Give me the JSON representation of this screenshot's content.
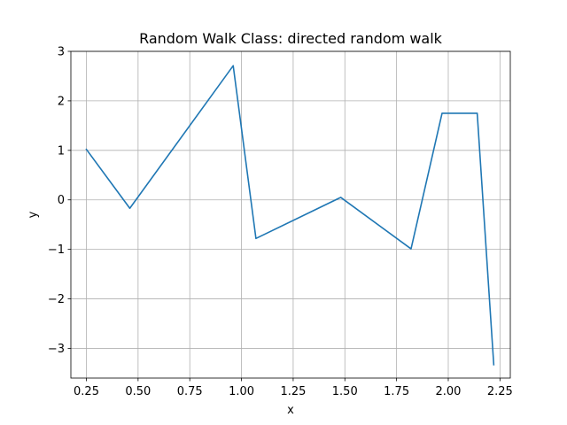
{
  "chart_data": {
    "type": "line",
    "title": "Random Walk Class:  directed random walk",
    "xlabel": "x",
    "ylabel": "y",
    "xlim": [
      0.175,
      2.3
    ],
    "ylim": [
      -3.6,
      3.0
    ],
    "xticks": [
      0.25,
      0.5,
      0.75,
      1.0,
      1.25,
      1.5,
      1.75,
      2.0,
      2.25
    ],
    "xtick_labels": [
      "0.25",
      "0.50",
      "0.75",
      "1.00",
      "1.25",
      "1.50",
      "1.75",
      "2.00",
      "2.25"
    ],
    "yticks": [
      -3,
      -2,
      -1,
      0,
      1,
      2,
      3
    ],
    "ytick_labels": [
      "−3",
      "−2",
      "−1",
      "0",
      "1",
      "2",
      "3"
    ],
    "grid": true,
    "series": [
      {
        "color": "#1f77b4",
        "x": [
          0.25,
          0.46,
          0.96,
          1.07,
          1.48,
          1.82,
          1.97,
          2.14,
          2.22
        ],
        "y": [
          1.02,
          -0.17,
          2.71,
          -0.78,
          0.05,
          -0.99,
          1.75,
          1.75,
          -3.33
        ]
      }
    ]
  }
}
